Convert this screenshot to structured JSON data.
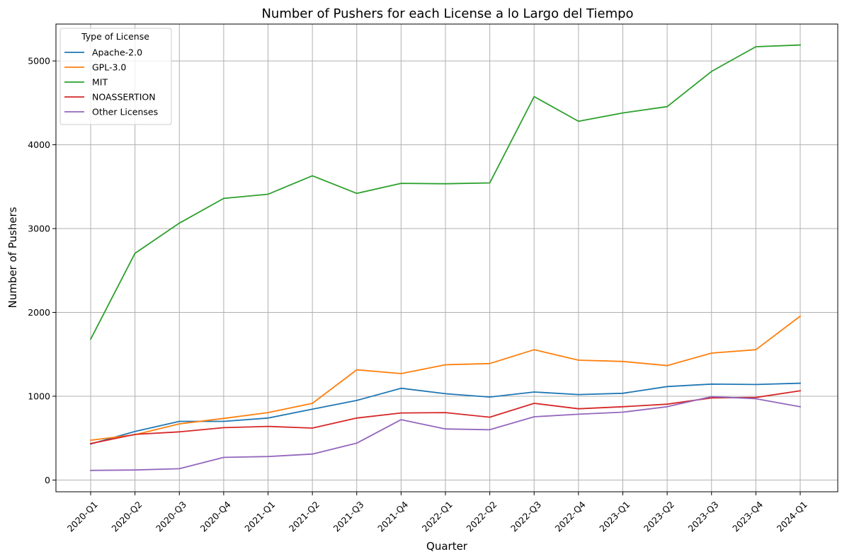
{
  "chart_data": {
    "type": "line",
    "title": "Number of Pushers for each License a lo Largo del Tiempo",
    "xlabel": "Quarter",
    "ylabel": "Number of Pushers",
    "categories": [
      "2020-Q1",
      "2020-Q2",
      "2020-Q3",
      "2020-Q4",
      "2021-Q1",
      "2021-Q2",
      "2021-Q3",
      "2021-Q4",
      "2022-Q1",
      "2022-Q2",
      "2022-Q3",
      "2022-Q4",
      "2023-Q1",
      "2023-Q2",
      "2023-Q3",
      "2023-Q4",
      "2024-Q1"
    ],
    "ylim": [
      -140,
      5440
    ],
    "yticks": [
      0,
      1000,
      2000,
      3000,
      4000,
      5000
    ],
    "grid": true,
    "legend": {
      "title": "Type of License",
      "placement": "top-left"
    },
    "series": [
      {
        "name": "Apache-2.0",
        "color": "#1f77b4",
        "values": [
          430,
          580,
          700,
          700,
          740,
          845,
          950,
          1095,
          1030,
          990,
          1050,
          1020,
          1035,
          1115,
          1145,
          1140,
          1155
        ]
      },
      {
        "name": "GPL-3.0",
        "color": "#ff7f0e",
        "values": [
          475,
          540,
          670,
          735,
          805,
          915,
          1315,
          1270,
          1375,
          1390,
          1555,
          1430,
          1415,
          1365,
          1515,
          1555,
          1955
        ]
      },
      {
        "name": "MIT",
        "color": "#2ca02c",
        "values": [
          1680,
          2705,
          3065,
          3360,
          3410,
          3630,
          3420,
          3540,
          3535,
          3545,
          4575,
          4280,
          4380,
          4455,
          4875,
          5170,
          5190
        ]
      },
      {
        "name": "NOASSERTION",
        "color": "#d62728",
        "values": [
          435,
          545,
          575,
          625,
          640,
          620,
          740,
          800,
          805,
          750,
          915,
          850,
          875,
          905,
          980,
          985,
          1065
        ]
      },
      {
        "name": "Other Licenses",
        "color": "#9467bd",
        "values": [
          115,
          120,
          135,
          270,
          280,
          310,
          440,
          720,
          610,
          600,
          755,
          785,
          810,
          875,
          995,
          970,
          875
        ]
      }
    ]
  }
}
